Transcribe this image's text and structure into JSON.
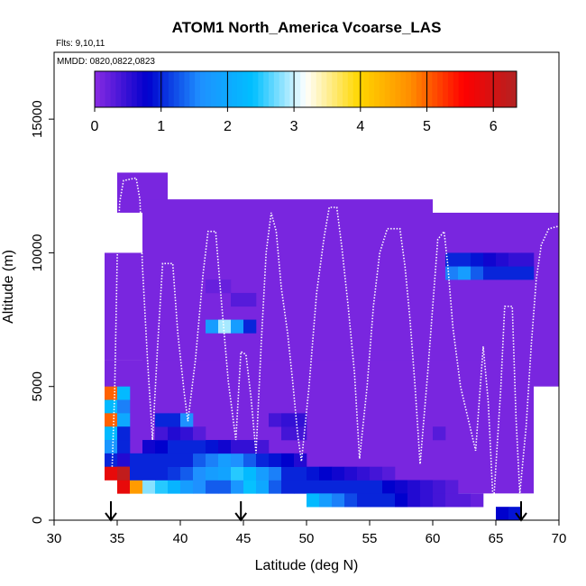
{
  "chart_data": {
    "type": "heatmap",
    "title": "ATOM1 North_America Vcoarse_LAS",
    "annotations": [
      "Flts: 9,10,11",
      "MMDD: 0820,0822,0823"
    ],
    "xlabel": "Latitude (deg N)",
    "ylabel": "Altitude (m)",
    "xlim": [
      30,
      70
    ],
    "ylim": [
      0,
      17500
    ],
    "x_ticks": [
      30,
      35,
      40,
      45,
      50,
      55,
      60,
      65,
      70
    ],
    "y_ticks": [
      0,
      5000,
      10000,
      15000
    ],
    "grid": false,
    "colorbar": {
      "placement": "top-inside",
      "range": [
        0,
        6.35
      ],
      "ticks": [
        0,
        1,
        2,
        3,
        4,
        5,
        6
      ],
      "colors": [
        "#8a2be2",
        "#0000cd",
        "#1e90ff",
        "#00bfff",
        "#ffffff",
        "#ffd700",
        "#ff8c00",
        "#ff0000",
        "#b22222"
      ]
    },
    "background_value": 0.1,
    "coverage": [
      [
        34,
        40,
        6000,
        10000
      ],
      [
        35,
        39,
        11500,
        13000
      ],
      [
        37,
        60,
        5000,
        12000
      ],
      [
        60,
        70,
        5000,
        11500
      ],
      [
        40,
        68,
        1000,
        6000
      ],
      [
        60,
        68,
        4000,
        6000
      ],
      [
        34,
        49,
        1500,
        6000
      ]
    ],
    "cell_size": [
      1,
      500
    ],
    "cells": [
      [
        34.5,
        4750,
        5.0
      ],
      [
        35.5,
        4750,
        2.3
      ],
      [
        34.5,
        4250,
        2.3
      ],
      [
        35.5,
        4250,
        1.5
      ],
      [
        34.5,
        3750,
        5.0
      ],
      [
        35.5,
        3750,
        2.0
      ],
      [
        34.5,
        3250,
        2.3
      ],
      [
        35.5,
        3250,
        1.0
      ],
      [
        34.5,
        2750,
        1.7
      ],
      [
        35.5,
        2750,
        1.0
      ],
      [
        34.5,
        2250,
        1.0
      ],
      [
        35.5,
        2250,
        0.6
      ],
      [
        35.5,
        1750,
        6.2
      ],
      [
        34.5,
        1750,
        5.8
      ],
      [
        35.5,
        1250,
        5.8
      ],
      [
        36.5,
        1250,
        4.6
      ],
      [
        37.5,
        1250,
        2.8
      ],
      [
        38.5,
        1250,
        2.5
      ],
      [
        39.5,
        1250,
        2.2
      ],
      [
        40.5,
        1250,
        1.8
      ],
      [
        41.5,
        1250,
        1.6
      ],
      [
        42.5,
        1250,
        1.3
      ],
      [
        43.5,
        1250,
        1.3
      ],
      [
        44.5,
        1250,
        1.7
      ],
      [
        45.5,
        1250,
        2.4
      ],
      [
        46.5,
        1250,
        2.0
      ],
      [
        47.5,
        1250,
        1.3
      ],
      [
        48.5,
        1250,
        1.0
      ],
      [
        49.5,
        1250,
        1.0
      ],
      [
        50.5,
        1250,
        1.0
      ],
      [
        51.5,
        1250,
        1.0
      ],
      [
        52.5,
        1250,
        1.0
      ],
      [
        53.5,
        1250,
        1.0
      ],
      [
        54.5,
        1250,
        1.0
      ],
      [
        55.5,
        1250,
        1.0
      ],
      [
        56.5,
        1250,
        0.8
      ],
      [
        57.5,
        1250,
        0.7
      ],
      [
        58.5,
        1250,
        0.6
      ],
      [
        59.5,
        1250,
        0.5
      ],
      [
        60.5,
        1250,
        0.4
      ],
      [
        61.5,
        1250,
        0.3
      ],
      [
        50.5,
        750,
        2.3
      ],
      [
        51.5,
        750,
        1.8
      ],
      [
        52.5,
        750,
        1.5
      ],
      [
        53.5,
        750,
        1.2
      ],
      [
        54.5,
        750,
        1.0
      ],
      [
        55.5,
        750,
        1.0
      ],
      [
        56.5,
        750,
        1.0
      ],
      [
        57.5,
        750,
        0.8
      ],
      [
        58.5,
        750,
        0.6
      ],
      [
        59.5,
        750,
        0.5
      ],
      [
        60.5,
        750,
        0.4
      ],
      [
        61.5,
        750,
        0.3
      ],
      [
        62.5,
        750,
        0.3
      ],
      [
        63.5,
        750,
        0.2
      ],
      [
        35.5,
        1750,
        6.2
      ],
      [
        36.5,
        1750,
        1.0
      ],
      [
        37.5,
        1750,
        1.0
      ],
      [
        38.5,
        1750,
        1.0
      ],
      [
        39.5,
        1750,
        1.1
      ],
      [
        40.5,
        1750,
        1.3
      ],
      [
        41.5,
        1750,
        1.6
      ],
      [
        42.5,
        1750,
        1.8
      ],
      [
        43.5,
        1750,
        1.9
      ],
      [
        44.5,
        1750,
        2.5
      ],
      [
        45.5,
        1750,
        2.3
      ],
      [
        46.5,
        1750,
        1.8
      ],
      [
        47.5,
        1750,
        1.5
      ],
      [
        48.5,
        1750,
        1.0
      ],
      [
        49.5,
        1750,
        1.0
      ],
      [
        50.5,
        1750,
        0.9
      ],
      [
        51.5,
        1750,
        0.8
      ],
      [
        52.5,
        1750,
        0.7
      ],
      [
        53.5,
        1750,
        0.6
      ],
      [
        54.5,
        1750,
        0.5
      ],
      [
        55.5,
        1750,
        0.4
      ],
      [
        56.5,
        1750,
        0.3
      ],
      [
        36.5,
        2250,
        1.0
      ],
      [
        37.5,
        2250,
        1.0
      ],
      [
        38.5,
        2250,
        1.0
      ],
      [
        39.5,
        2250,
        1.0
      ],
      [
        40.5,
        2250,
        1.0
      ],
      [
        41.5,
        2250,
        1.3
      ],
      [
        42.5,
        2250,
        1.5
      ],
      [
        43.5,
        2250,
        1.8
      ],
      [
        44.5,
        2250,
        1.6
      ],
      [
        45.5,
        2250,
        1.3
      ],
      [
        46.5,
        2250,
        1.0
      ],
      [
        47.5,
        2250,
        0.9
      ],
      [
        48.5,
        2250,
        0.8
      ],
      [
        49.5,
        2250,
        0.6
      ],
      [
        37.5,
        2750,
        0.7
      ],
      [
        38.5,
        2750,
        0.8
      ],
      [
        39.5,
        2750,
        1.0
      ],
      [
        40.5,
        2750,
        1.0
      ],
      [
        41.5,
        2750,
        1.0
      ],
      [
        42.5,
        2750,
        0.9
      ],
      [
        43.5,
        2750,
        0.7
      ],
      [
        44.5,
        2750,
        0.5
      ],
      [
        45.5,
        2750,
        0.5
      ],
      [
        46.5,
        2750,
        0.4
      ],
      [
        38.5,
        3250,
        0.4
      ],
      [
        39.5,
        3250,
        0.6
      ],
      [
        40.5,
        3250,
        0.5
      ],
      [
        41.5,
        3250,
        0.3
      ],
      [
        48.5,
        3250,
        0.4
      ],
      [
        49.5,
        3250,
        0.4
      ],
      [
        38.5,
        3750,
        1.0
      ],
      [
        39.5,
        3750,
        1.0
      ],
      [
        40.5,
        3750,
        1.6
      ],
      [
        47.5,
        3750,
        0.4
      ],
      [
        48.5,
        3750,
        0.5
      ],
      [
        49.5,
        3750,
        0.5
      ],
      [
        42.5,
        7250,
        1.8
      ],
      [
        43.5,
        7250,
        2.9
      ],
      [
        44.5,
        7250,
        1.8
      ],
      [
        45.5,
        7250,
        1.0
      ],
      [
        44.5,
        8250,
        0.3
      ],
      [
        45.5,
        8250,
        0.3
      ],
      [
        42.5,
        8750,
        0.2
      ],
      [
        43.5,
        8750,
        0.2
      ],
      [
        61.5,
        9250,
        1.5
      ],
      [
        62.5,
        9250,
        1.8
      ],
      [
        63.5,
        9250,
        1.3
      ],
      [
        64.5,
        9250,
        1.0
      ],
      [
        65.5,
        9250,
        1.0
      ],
      [
        66.5,
        9250,
        1.0
      ],
      [
        67.5,
        9250,
        1.0
      ],
      [
        61.5,
        9750,
        1.0
      ],
      [
        62.5,
        9750,
        1.0
      ],
      [
        63.5,
        9750,
        0.9
      ],
      [
        64.5,
        9750,
        0.7
      ],
      [
        65.5,
        9750,
        0.6
      ],
      [
        66.5,
        9750,
        0.5
      ],
      [
        67.5,
        9750,
        0.5
      ],
      [
        60.5,
        3250,
        0.3
      ],
      [
        65.5,
        250,
        0.8
      ],
      [
        66.5,
        250,
        0.9
      ]
    ],
    "flight_track": [
      [
        34.6,
        2000
      ],
      [
        34.8,
        4800
      ],
      [
        35.0,
        9800
      ],
      [
        35.2,
        11900
      ],
      [
        35.5,
        12700
      ],
      [
        36.5,
        12800
      ],
      [
        36.8,
        12000
      ],
      [
        37.0,
        9500
      ],
      [
        37.4,
        6000
      ],
      [
        37.8,
        3000
      ],
      [
        38.2,
        6500
      ],
      [
        38.6,
        9600
      ],
      [
        39.4,
        9600
      ],
      [
        39.8,
        7000
      ],
      [
        40.3,
        4800
      ],
      [
        40.6,
        3700
      ],
      [
        41.2,
        6000
      ],
      [
        41.8,
        9200
      ],
      [
        42.2,
        10800
      ],
      [
        42.8,
        10800
      ],
      [
        43.2,
        8500
      ],
      [
        43.8,
        5200
      ],
      [
        44.4,
        3000
      ],
      [
        44.8,
        6300
      ],
      [
        45.2,
        6200
      ],
      [
        45.6,
        4600
      ],
      [
        46.0,
        2500
      ],
      [
        46.4,
        6500
      ],
      [
        46.8,
        10000
      ],
      [
        47.2,
        11500
      ],
      [
        47.6,
        10800
      ],
      [
        48.0,
        8700
      ],
      [
        48.5,
        7000
      ],
      [
        48.9,
        5200
      ],
      [
        49.3,
        3200
      ],
      [
        49.6,
        2200
      ],
      [
        50.2,
        5000
      ],
      [
        50.8,
        8500
      ],
      [
        51.4,
        10600
      ],
      [
        51.8,
        11700
      ],
      [
        52.4,
        11700
      ],
      [
        52.8,
        10200
      ],
      [
        53.3,
        8000
      ],
      [
        53.8,
        5500
      ],
      [
        54.2,
        2300
      ],
      [
        54.8,
        5000
      ],
      [
        55.3,
        8000
      ],
      [
        55.8,
        10000
      ],
      [
        56.4,
        10900
      ],
      [
        57.4,
        10900
      ],
      [
        57.8,
        9500
      ],
      [
        58.2,
        7500
      ],
      [
        58.6,
        5000
      ],
      [
        59.0,
        2100
      ],
      [
        59.6,
        5500
      ],
      [
        60.0,
        8000
      ],
      [
        60.4,
        10500
      ],
      [
        60.9,
        10800
      ],
      [
        61.2,
        9500
      ],
      [
        61.6,
        7200
      ],
      [
        62.2,
        5000
      ],
      [
        62.8,
        3800
      ],
      [
        63.4,
        2600
      ],
      [
        64.0,
        6500
      ],
      [
        64.4,
        4400
      ],
      [
        64.8,
        500
      ],
      [
        65.4,
        5000
      ],
      [
        65.7,
        8000
      ],
      [
        66.3,
        8000
      ],
      [
        66.6,
        3800
      ],
      [
        66.9,
        1000
      ],
      [
        67.4,
        3500
      ],
      [
        67.8,
        6500
      ],
      [
        68.2,
        9000
      ],
      [
        68.6,
        10300
      ],
      [
        69.2,
        10900
      ],
      [
        70.0,
        11000
      ]
    ],
    "arrows_at_latitude": [
      34.5,
      44.8,
      67.0
    ]
  }
}
